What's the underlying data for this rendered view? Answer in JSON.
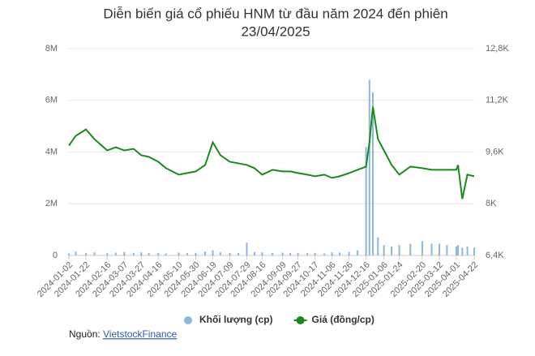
{
  "chart_data": {
    "type": "bar-line",
    "title": [
      "Diễn biến giá cổ phiếu HNM từ đầu năm 2024 đến phiên",
      "23/04/2025"
    ],
    "x": [
      "2024-01-02",
      "2024-01-10",
      "2024-01-22",
      "2024-02-01",
      "2024-02-16",
      "2024-02-26",
      "2024-03-07",
      "2024-03-18",
      "2024-03-27",
      "2024-04-05",
      "2024-04-16",
      "2024-04-25",
      "2024-05-10",
      "2024-05-20",
      "2024-05-30",
      "2024-06-10",
      "2024-06-19",
      "2024-06-28",
      "2024-07-09",
      "2024-07-19",
      "2024-07-29",
      "2024-08-07",
      "2024-08-16",
      "2024-08-28",
      "2024-09-09",
      "2024-09-18",
      "2024-09-27",
      "2024-10-08",
      "2024-10-17",
      "2024-10-28",
      "2024-11-06",
      "2024-11-15",
      "2024-11-26",
      "2024-12-06",
      "2024-12-16",
      "2024-12-20",
      "2024-12-24",
      "2024-12-30",
      "2025-01-06",
      "2025-01-15",
      "2025-01-24",
      "2025-02-06",
      "2025-02-20",
      "2025-03-03",
      "2025-03-12",
      "2025-03-21",
      "2025-04-01",
      "2025-04-03",
      "2025-04-08",
      "2025-04-14",
      "2025-04-22"
    ],
    "xlim": [
      "2024-01-02",
      "2025-04-22"
    ],
    "xticks": [
      "2024-01-02",
      "2024-01-22",
      "2024-02-16",
      "2024-03-07",
      "2024-03-27",
      "2024-04-16",
      "2024-05-10",
      "2024-05-30",
      "2024-06-19",
      "2024-07-09",
      "2024-07-29",
      "2024-08-16",
      "2024-09-09",
      "2024-09-27",
      "2024-10-17",
      "2024-11-06",
      "2024-11-26",
      "2024-12-16",
      "2025-01-06",
      "2025-01-24",
      "2025-02-20",
      "2025-03-12",
      "2025-04-01",
      "2025-04-22"
    ],
    "series": [
      {
        "name": "Khối lượng (cp)",
        "type": "bar",
        "color": "#8ab8e0",
        "values": [
          80000,
          150000,
          100000,
          120000,
          90000,
          110000,
          130000,
          100000,
          120000,
          90000,
          100000,
          80000,
          110000,
          90000,
          100000,
          150000,
          200000,
          120000,
          100000,
          90000,
          500000,
          130000,
          120000,
          100000,
          110000,
          90000,
          100000,
          90000,
          100000,
          80000,
          120000,
          110000,
          140000,
          200000,
          4200000,
          6800000,
          6300000,
          700000,
          400000,
          350000,
          400000,
          450000,
          550000,
          450000,
          450000,
          400000,
          350000,
          400000,
          300000,
          350000,
          300000
        ]
      },
      {
        "name": "Giá (đồng/cp)",
        "type": "line",
        "axis": "y2",
        "color": "#1a8a1a",
        "values": [
          9800,
          10100,
          10300,
          10000,
          9650,
          9750,
          9650,
          9700,
          9500,
          9450,
          9300,
          9100,
          8900,
          8950,
          9000,
          9200,
          9900,
          9500,
          9300,
          9250,
          9200,
          9100,
          8900,
          9050,
          9000,
          9000,
          8950,
          8900,
          8850,
          8900,
          8800,
          8850,
          8950,
          9050,
          9150,
          9900,
          11000,
          10000,
          9650,
          9200,
          8900,
          9150,
          9100,
          9050,
          9050,
          9050,
          9050,
          9200,
          8150,
          8900,
          8850
        ]
      }
    ],
    "ylim": [
      0,
      8000000
    ],
    "yticks": [
      0,
      {
        "value": 2000000,
        "label": "2M"
      },
      {
        "value": 4000000,
        "label": "4M"
      },
      {
        "value": 6000000,
        "label": "6M"
      },
      {
        "value": 8000000,
        "label": "8M"
      }
    ],
    "y2lim": [
      6400,
      12800
    ],
    "y2ticks": [
      {
        "value": 6400,
        "label": "6,4K"
      },
      {
        "value": 8000,
        "label": "8K"
      },
      {
        "value": 9600,
        "label": "9,6K"
      },
      {
        "value": 11200,
        "label": "11,2K"
      },
      {
        "value": 12800,
        "label": "12,8K"
      }
    ],
    "grid": true,
    "source_label": "Nguồn:",
    "source_link": "VietstockFinance"
  }
}
